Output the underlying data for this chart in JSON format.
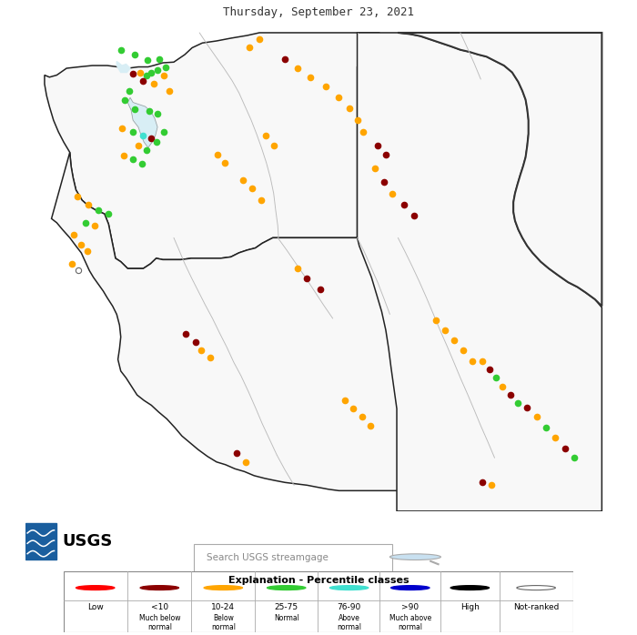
{
  "title": "Thursday, September 23, 2021",
  "title_fontsize": 9,
  "background_color": "#ffffff",
  "map_xlim": [
    -125.5,
    -110.5
  ],
  "map_ylim": [
    42.0,
    49.2
  ],
  "color_low": "#ff0000",
  "color_much_below": "#8b0000",
  "color_below": "#ffa500",
  "color_normal": "#33cc33",
  "color_above": "#40e0d0",
  "color_much_above": "#0000cc",
  "color_high": "#000000",
  "color_notranked_face": "#ffffff",
  "color_notranked_edge": "#666666",
  "legend_title": "Explanation - Percentile classes",
  "search_box_text": "Search USGS streamgage",
  "gages": [
    {
      "lon": -122.85,
      "lat": 48.75,
      "cat": "normal"
    },
    {
      "lon": -122.5,
      "lat": 48.68,
      "cat": "normal"
    },
    {
      "lon": -122.2,
      "lat": 48.6,
      "cat": "normal"
    },
    {
      "lon": -121.9,
      "lat": 48.62,
      "cat": "normal"
    },
    {
      "lon": -121.75,
      "lat": 48.5,
      "cat": "normal"
    },
    {
      "lon": -122.1,
      "lat": 48.42,
      "cat": "normal"
    },
    {
      "lon": -122.55,
      "lat": 48.4,
      "cat": "much_below"
    },
    {
      "lon": -122.38,
      "lat": 48.42,
      "cat": "below"
    },
    {
      "lon": -122.22,
      "lat": 48.38,
      "cat": "normal"
    },
    {
      "lon": -121.95,
      "lat": 48.45,
      "cat": "normal"
    },
    {
      "lon": -121.8,
      "lat": 48.38,
      "cat": "below"
    },
    {
      "lon": -122.3,
      "lat": 48.3,
      "cat": "much_below"
    },
    {
      "lon": -122.05,
      "lat": 48.25,
      "cat": "below"
    },
    {
      "lon": -121.65,
      "lat": 48.15,
      "cat": "below"
    },
    {
      "lon": -122.65,
      "lat": 48.15,
      "cat": "normal"
    },
    {
      "lon": -122.75,
      "lat": 48.02,
      "cat": "normal"
    },
    {
      "lon": -122.5,
      "lat": 47.88,
      "cat": "normal"
    },
    {
      "lon": -122.15,
      "lat": 47.85,
      "cat": "normal"
    },
    {
      "lon": -121.95,
      "lat": 47.82,
      "cat": "normal"
    },
    {
      "lon": -122.82,
      "lat": 47.6,
      "cat": "below"
    },
    {
      "lon": -122.55,
      "lat": 47.55,
      "cat": "normal"
    },
    {
      "lon": -122.3,
      "lat": 47.5,
      "cat": "above"
    },
    {
      "lon": -122.1,
      "lat": 47.45,
      "cat": "much_below"
    },
    {
      "lon": -121.98,
      "lat": 47.4,
      "cat": "normal"
    },
    {
      "lon": -121.8,
      "lat": 47.55,
      "cat": "normal"
    },
    {
      "lon": -122.42,
      "lat": 47.35,
      "cat": "below"
    },
    {
      "lon": -122.22,
      "lat": 47.28,
      "cat": "normal"
    },
    {
      "lon": -122.78,
      "lat": 47.2,
      "cat": "below"
    },
    {
      "lon": -122.55,
      "lat": 47.15,
      "cat": "normal"
    },
    {
      "lon": -122.32,
      "lat": 47.08,
      "cat": "normal"
    },
    {
      "lon": -120.48,
      "lat": 47.22,
      "cat": "below"
    },
    {
      "lon": -120.3,
      "lat": 47.1,
      "cat": "below"
    },
    {
      "lon": -119.45,
      "lat": 48.9,
      "cat": "below"
    },
    {
      "lon": -119.7,
      "lat": 48.78,
      "cat": "below"
    },
    {
      "lon": -118.82,
      "lat": 48.62,
      "cat": "much_below"
    },
    {
      "lon": -118.52,
      "lat": 48.48,
      "cat": "below"
    },
    {
      "lon": -118.2,
      "lat": 48.35,
      "cat": "below"
    },
    {
      "lon": -117.82,
      "lat": 48.22,
      "cat": "below"
    },
    {
      "lon": -117.5,
      "lat": 48.05,
      "cat": "below"
    },
    {
      "lon": -117.25,
      "lat": 47.9,
      "cat": "below"
    },
    {
      "lon": -117.05,
      "lat": 47.72,
      "cat": "below"
    },
    {
      "lon": -116.9,
      "lat": 47.55,
      "cat": "below"
    },
    {
      "lon": -119.3,
      "lat": 47.5,
      "cat": "below"
    },
    {
      "lon": -119.1,
      "lat": 47.35,
      "cat": "below"
    },
    {
      "lon": -119.85,
      "lat": 46.85,
      "cat": "below"
    },
    {
      "lon": -119.62,
      "lat": 46.72,
      "cat": "below"
    },
    {
      "lon": -119.4,
      "lat": 46.55,
      "cat": "below"
    },
    {
      "lon": -116.55,
      "lat": 47.35,
      "cat": "much_below"
    },
    {
      "lon": -116.35,
      "lat": 47.22,
      "cat": "much_below"
    },
    {
      "lon": -116.62,
      "lat": 47.02,
      "cat": "below"
    },
    {
      "lon": -116.4,
      "lat": 46.82,
      "cat": "much_below"
    },
    {
      "lon": -116.2,
      "lat": 46.65,
      "cat": "below"
    },
    {
      "lon": -115.9,
      "lat": 46.48,
      "cat": "much_below"
    },
    {
      "lon": -115.65,
      "lat": 46.32,
      "cat": "much_below"
    },
    {
      "lon": -123.92,
      "lat": 46.6,
      "cat": "below"
    },
    {
      "lon": -123.65,
      "lat": 46.48,
      "cat": "below"
    },
    {
      "lon": -123.4,
      "lat": 46.4,
      "cat": "normal"
    },
    {
      "lon": -123.15,
      "lat": 46.35,
      "cat": "normal"
    },
    {
      "lon": -123.72,
      "lat": 46.22,
      "cat": "normal"
    },
    {
      "lon": -123.48,
      "lat": 46.18,
      "cat": "below"
    },
    {
      "lon": -124.0,
      "lat": 46.05,
      "cat": "below"
    },
    {
      "lon": -123.82,
      "lat": 45.9,
      "cat": "below"
    },
    {
      "lon": -123.68,
      "lat": 45.8,
      "cat": "below"
    },
    {
      "lon": -124.05,
      "lat": 45.62,
      "cat": "below"
    },
    {
      "lon": -123.9,
      "lat": 45.52,
      "cat": "not_ranked"
    },
    {
      "lon": -118.52,
      "lat": 45.55,
      "cat": "below"
    },
    {
      "lon": -118.28,
      "lat": 45.4,
      "cat": "much_below"
    },
    {
      "lon": -117.95,
      "lat": 45.25,
      "cat": "much_below"
    },
    {
      "lon": -121.25,
      "lat": 44.6,
      "cat": "much_below"
    },
    {
      "lon": -121.02,
      "lat": 44.48,
      "cat": "much_below"
    },
    {
      "lon": -120.88,
      "lat": 44.35,
      "cat": "below"
    },
    {
      "lon": -120.65,
      "lat": 44.25,
      "cat": "below"
    },
    {
      "lon": -117.35,
      "lat": 43.62,
      "cat": "below"
    },
    {
      "lon": -117.15,
      "lat": 43.5,
      "cat": "below"
    },
    {
      "lon": -116.92,
      "lat": 43.38,
      "cat": "below"
    },
    {
      "lon": -116.72,
      "lat": 43.25,
      "cat": "below"
    },
    {
      "lon": -120.02,
      "lat": 42.85,
      "cat": "much_below"
    },
    {
      "lon": -119.78,
      "lat": 42.72,
      "cat": "below"
    },
    {
      "lon": -113.98,
      "lat": 44.2,
      "cat": "below"
    },
    {
      "lon": -113.8,
      "lat": 44.08,
      "cat": "much_below"
    },
    {
      "lon": -113.65,
      "lat": 43.95,
      "cat": "normal"
    },
    {
      "lon": -113.48,
      "lat": 43.82,
      "cat": "below"
    },
    {
      "lon": -113.3,
      "lat": 43.7,
      "cat": "much_below"
    },
    {
      "lon": -113.12,
      "lat": 43.58,
      "cat": "normal"
    },
    {
      "lon": -115.12,
      "lat": 44.8,
      "cat": "below"
    },
    {
      "lon": -114.9,
      "lat": 44.65,
      "cat": "below"
    },
    {
      "lon": -114.68,
      "lat": 44.5,
      "cat": "below"
    },
    {
      "lon": -114.45,
      "lat": 44.35,
      "cat": "below"
    },
    {
      "lon": -114.22,
      "lat": 44.2,
      "cat": "below"
    },
    {
      "lon": -113.98,
      "lat": 42.42,
      "cat": "much_below"
    },
    {
      "lon": -113.75,
      "lat": 42.38,
      "cat": "below"
    },
    {
      "lon": -112.88,
      "lat": 43.52,
      "cat": "much_below"
    },
    {
      "lon": -112.65,
      "lat": 43.38,
      "cat": "below"
    },
    {
      "lon": -112.42,
      "lat": 43.22,
      "cat": "normal"
    },
    {
      "lon": -112.2,
      "lat": 43.08,
      "cat": "below"
    },
    {
      "lon": -111.95,
      "lat": 42.92,
      "cat": "much_below"
    },
    {
      "lon": -111.72,
      "lat": 42.78,
      "cat": "normal"
    }
  ],
  "fig_width": 7.0,
  "fig_height": 6.98
}
